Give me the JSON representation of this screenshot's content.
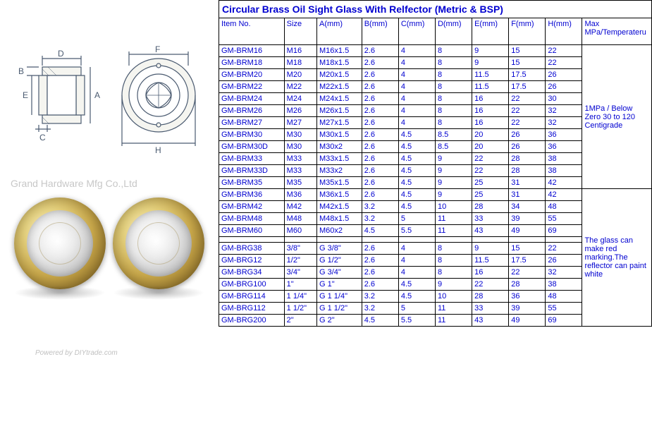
{
  "title": "Circular Brass Oil Sight Glass With Relfector (Metric & BSP)",
  "watermark": "Grand Hardware Mfg Co.,Ltd",
  "powered": "Powered by DIYtrade.com",
  "diagram_labels": {
    "A": "A",
    "B": "B",
    "C": "C",
    "D": "D",
    "E": "E",
    "F": "F",
    "H": "H"
  },
  "headers": [
    "Item No.",
    "Size",
    "A(mm)",
    "B(mm)",
    "C(mm)",
    "D(mm)",
    "E(mm)",
    "F(mm)",
    "H(mm)",
    "Max MPa/Temperateru"
  ],
  "note1": "1MPa  / Below Zero 30 to 120 Centigrade",
  "note2": "The glass can make red marking.The reflector can paint white",
  "rows_group1": [
    [
      "GM-BRM16",
      "M16",
      "M16x1.5",
      "2.6",
      "4",
      "8",
      "9",
      "15",
      "22"
    ],
    [
      "GM-BRM18",
      "M18",
      "M18x1.5",
      "2.6",
      "4",
      "8",
      "9",
      "15",
      "22"
    ],
    [
      "GM-BRM20",
      "M20",
      "M20x1.5",
      "2.6",
      "4",
      "8",
      "11.5",
      "17.5",
      "26"
    ],
    [
      "GM-BRM22",
      "M22",
      "M22x1.5",
      "2.6",
      "4",
      "8",
      "11.5",
      "17.5",
      "26"
    ],
    [
      "GM-BRM24",
      "M24",
      "M24x1.5",
      "2.6",
      "4",
      "8",
      "16",
      "22",
      "30"
    ],
    [
      "GM-BRM26",
      "M26",
      "M26x1.5",
      "2.6",
      "4",
      "8",
      "16",
      "22",
      "32"
    ],
    [
      "GM-BRM27",
      "M27",
      "M27x1.5",
      "2.6",
      "4",
      "8",
      "16",
      "22",
      "32"
    ],
    [
      "GM-BRM30",
      "M30",
      "M30x1.5",
      "2.6",
      "4.5",
      "8.5",
      "20",
      "26",
      "36"
    ],
    [
      "GM-BRM30D",
      "M30",
      "M30x2",
      "2.6",
      "4.5",
      "8.5",
      "20",
      "26",
      "36"
    ],
    [
      "GM-BRM33",
      "M33",
      "M33x1.5",
      "2.6",
      "4.5",
      "9",
      "22",
      "28",
      "38"
    ],
    [
      "GM-BRM33D",
      "M33",
      "M33x2",
      "2.6",
      "4.5",
      "9",
      "22",
      "28",
      "38"
    ],
    [
      "GM-BRM35",
      "M35",
      "M35x1.5",
      "2.6",
      "4.5",
      "9",
      "25",
      "31",
      "42"
    ]
  ],
  "rows_group2": [
    [
      "GM-BRM36",
      "M36",
      "M36x1.5",
      "2.6",
      "4.5",
      "9",
      "25",
      "31",
      "42"
    ],
    [
      "GM-BRM42",
      "M42",
      "M42x1.5",
      "3.2",
      "4.5",
      "10",
      "28",
      "34",
      "48"
    ],
    [
      "GM-BRM48",
      "M48",
      "M48x1.5",
      "3.2",
      "5",
      "11",
      "33",
      "39",
      "55"
    ],
    [
      "GM-BRM60",
      "M60",
      "M60x2",
      "4.5",
      "5.5",
      "11",
      "43",
      "49",
      "69"
    ]
  ],
  "rows_group3": [
    [
      "GM-BRG38",
      "3/8\"",
      "G 3/8\"",
      "2.6",
      "4",
      "8",
      "9",
      "15",
      "22"
    ],
    [
      "GM-BRG12",
      "1/2\"",
      "G 1/2\"",
      "2.6",
      "4",
      "8",
      "11.5",
      "17.5",
      "26"
    ],
    [
      "GM-BRG34",
      "3/4\"",
      "G 3/4\"",
      "2.6",
      "4",
      "8",
      "16",
      "22",
      "32"
    ],
    [
      "GM-BRG100",
      "1\"",
      "G 1\"",
      "2.6",
      "4.5",
      "9",
      "22",
      "28",
      "38"
    ],
    [
      "GM-BRG114",
      "1 1/4\"",
      "G 1 1/4\"",
      "3.2",
      "4.5",
      "10",
      "28",
      "36",
      "48"
    ],
    [
      "GM-BRG112",
      "1 1/2\"",
      "G 1 1/2\"",
      "3.2",
      "5",
      "11",
      "33",
      "39",
      "55"
    ],
    [
      "GM-BRG200",
      "2\"",
      "G 2\"",
      "4.5",
      "5.5",
      "11",
      "43",
      "49",
      "69"
    ]
  ],
  "colors": {
    "text": "#0000d0",
    "border": "#000000",
    "brass_light": "#f5e8b8",
    "brass_dark": "#9a7a2e"
  },
  "diagram_stroke": "#4a5a70"
}
